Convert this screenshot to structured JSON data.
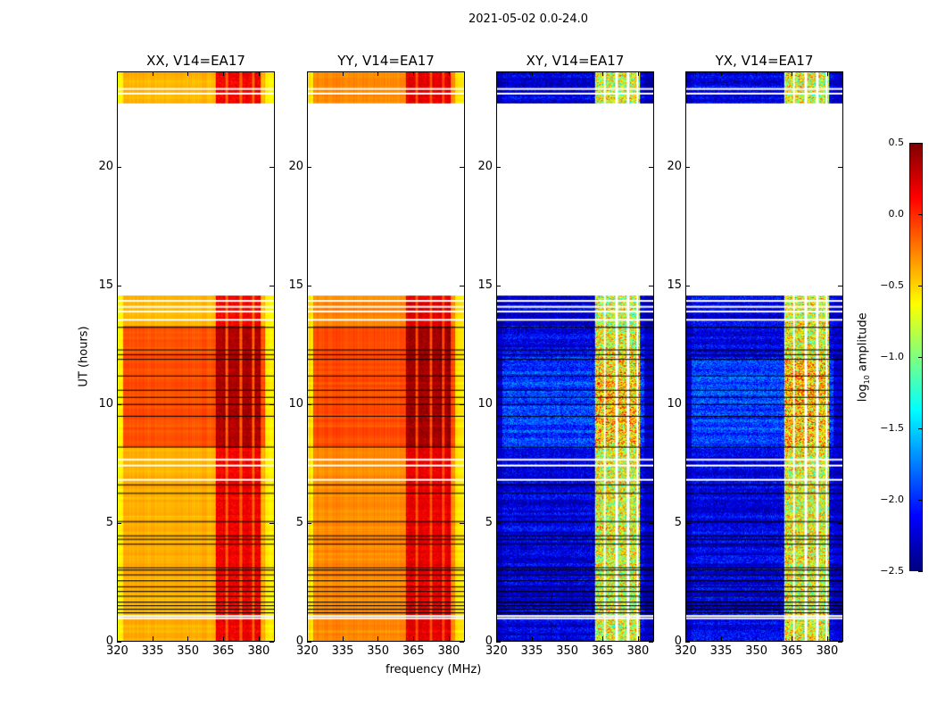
{
  "figure": {
    "title": "2021-05-02 0.0-24.0",
    "ylabel": "UT (hours)",
    "xlabel": "frequency (MHz)"
  },
  "colors": {
    "missing": "#ffffff",
    "flag_line": "#000000"
  },
  "chart_data": {
    "type": "heatmap",
    "colormap": "jet",
    "xlim": [
      320,
      387
    ],
    "ylim": [
      0,
      24
    ],
    "xticks": [
      320,
      335,
      350,
      365,
      380
    ],
    "yticks": [
      0,
      5,
      10,
      15,
      20
    ],
    "no_data_ranges_hours": [
      [
        14.6,
        22.7
      ]
    ],
    "white_rows_hours": [
      0.95,
      1.05,
      6.8,
      7.4,
      7.65,
      13.55,
      13.9,
      14.1,
      14.35,
      23.1,
      23.3
    ],
    "black_rows_hours": [
      1.2,
      1.35,
      1.5,
      1.65,
      1.9,
      2.1,
      2.3,
      2.55,
      2.8,
      3.0,
      3.1,
      4.1,
      4.3,
      4.45,
      5.05,
      6.25,
      6.6,
      8.2,
      9.5,
      10.0,
      10.3,
      10.6,
      11.2,
      11.9,
      12.1,
      12.3,
      13.25
    ],
    "rfi_band_mhz": [
      362,
      381
    ],
    "panels": [
      {
        "title": "XX, V14=EA17",
        "base": -0.4,
        "high_segment_hours": [
          8.2,
          13.3
        ],
        "high_base": -0.12,
        "rfi_level": 0.15,
        "edge_level": -0.6,
        "gap_channels_mhz": [
          366.5,
          372.5,
          378
        ]
      },
      {
        "title": "YY, V14=EA17",
        "base": -0.28,
        "high_segment_hours": [
          8.2,
          13.3
        ],
        "high_base": -0.1,
        "rfi_level": 0.2,
        "edge_level": -0.55,
        "gap_channels_mhz": [
          366.5,
          372.5,
          378
        ]
      },
      {
        "title": "XY, V14=EA17",
        "base": -2.2,
        "high_segment_hours": [
          8.2,
          12.0
        ],
        "high_base": -1.95,
        "rfi_level": -0.7,
        "edge_level": -2.3,
        "gap_channels_mhz": [
          366,
          371,
          376,
          380
        ]
      },
      {
        "title": "YX, V14=EA17",
        "base": -2.2,
        "high_segment_hours": [
          8.2,
          12.0
        ],
        "high_base": -1.95,
        "rfi_level": -0.7,
        "edge_level": -2.3,
        "gap_channels_mhz": [
          366,
          371,
          376,
          380
        ]
      }
    ],
    "colorbar": {
      "label": "log10 amplitude",
      "range": [
        -2.5,
        0.5
      ],
      "ticks": [
        "0.5",
        "0.0",
        "−0.5",
        "−1.0",
        "−1.5",
        "−2.0",
        "−2.5"
      ]
    }
  }
}
